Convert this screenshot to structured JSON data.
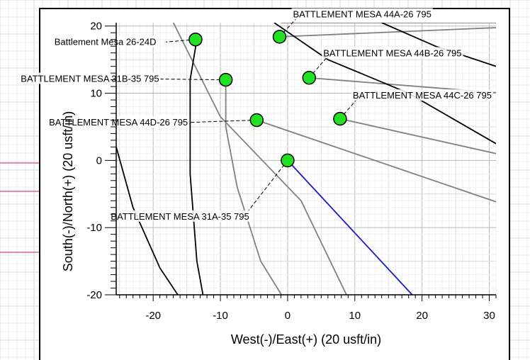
{
  "chart_data": {
    "type": "scatter",
    "xlabel": "West(-)/East(+) (20 usft/in)",
    "ylabel": "South(-)/North(+) (20 usft/in)",
    "xlim": [
      -25.5,
      31
    ],
    "ylim": [
      -20,
      20.5
    ],
    "xticks": [
      -20,
      -10,
      0,
      10,
      20,
      30
    ],
    "yticks": [
      -20,
      -10,
      0,
      10,
      20
    ],
    "grid": true,
    "wells": [
      {
        "name": "BATTLEMENT MESA 44A-26 795",
        "x": -1.2,
        "y": 18.4,
        "label_x": 0.8,
        "label_y": 21.3
      },
      {
        "name": "Battlement Mesa 26-24D",
        "x": -13.7,
        "y": 18.0,
        "label_x": -34.7,
        "label_y": 17.2
      },
      {
        "name": "BATTLEMENT MESA 44B-26 795",
        "x": 3.2,
        "y": 12.3,
        "label_x": 5.3,
        "label_y": 15.5
      },
      {
        "name": "BATTLEMENT MESA 31B-35 795",
        "x": -9.2,
        "y": 12.0,
        "label_x": -39.7,
        "label_y": 11.7
      },
      {
        "name": "BATTLEMENT MESA 44C-26 795",
        "x": 7.8,
        "y": 6.2,
        "label_x": 9.7,
        "label_y": 9.2
      },
      {
        "name": "BATTLEMENT MESA 44D-26 795",
        "x": -4.6,
        "y": 6.0,
        "label_x": -35.5,
        "label_y": 5.2
      },
      {
        "name": "BATTLEMENT MESA 31A-35 795",
        "x": 0.0,
        "y": 0.0,
        "label_x": -26.3,
        "label_y": -8.8
      }
    ],
    "offset_paths": [
      {
        "color": "#808080",
        "points": [
          [
            -1.2,
            18.4
          ],
          [
            32,
            19.8
          ]
        ]
      },
      {
        "color": "#808080",
        "points": [
          [
            3.2,
            12.3
          ],
          [
            32,
            10.0
          ]
        ]
      },
      {
        "color": "#808080",
        "points": [
          [
            7.8,
            6.2
          ],
          [
            32,
            0.8
          ]
        ]
      },
      {
        "color": "#808080",
        "points": [
          [
            -4.6,
            6.0
          ],
          [
            32,
            -6.5
          ]
        ]
      },
      {
        "color": "#808080",
        "points": [
          [
            -9.2,
            12.0
          ],
          [
            -9.2,
            5.0
          ],
          [
            -7.5,
            -4.0
          ],
          [
            -4.0,
            -15.0
          ],
          [
            -0.6,
            -20.5
          ]
        ]
      },
      {
        "color": "#808080",
        "points": [
          [
            -17.0,
            20.5
          ],
          [
            -10.0,
            6.5
          ],
          [
            2.0,
            -6.0
          ],
          [
            9.0,
            -20.5
          ]
        ]
      },
      {
        "color": "#808080",
        "points": [
          [
            -1.0,
            20.5
          ],
          [
            32,
            20.5
          ]
        ]
      }
    ],
    "boundary_lines": [
      {
        "color": "#000000",
        "points": [
          [
            -2.0,
            20.5
          ],
          [
            6.0,
            15.0
          ],
          [
            18.0,
            10.0
          ],
          [
            31,
            2.5
          ]
        ]
      },
      {
        "color": "#000000",
        "points": [
          [
            14.0,
            20.5
          ],
          [
            22.0,
            17.0
          ],
          [
            31,
            14.0
          ]
        ]
      },
      {
        "color": "#000000",
        "points": [
          [
            -13.5,
            18.0
          ],
          [
            -14.5,
            12.0
          ],
          [
            -14.5,
            -2.0
          ],
          [
            -13.5,
            -15.0
          ],
          [
            -12.5,
            -20.5
          ]
        ]
      },
      {
        "color": "#000000",
        "points": [
          [
            -25.5,
            2.0
          ],
          [
            -23.0,
            -7.0
          ],
          [
            -19.0,
            -16.0
          ],
          [
            -16.0,
            -20.5
          ]
        ]
      }
    ],
    "selected_path": {
      "color": "#1a1acc",
      "points": [
        [
          0,
          0
        ],
        [
          19,
          -20.5
        ]
      ]
    }
  }
}
